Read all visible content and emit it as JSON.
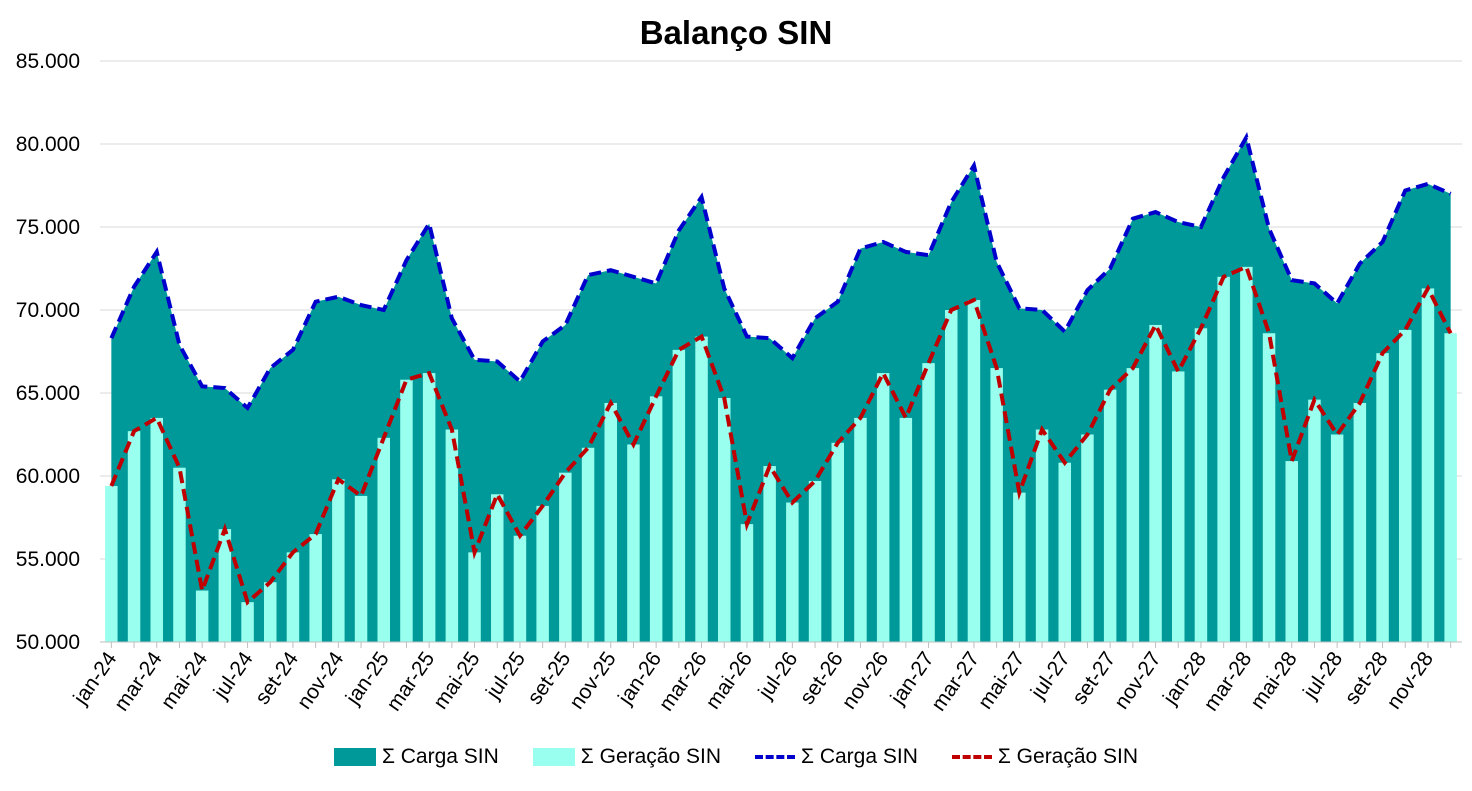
{
  "chart_data": {
    "type": "area",
    "title": "Balanço SIN",
    "ylim": [
      50000,
      85000
    ],
    "yticks": [
      "50.000",
      "55.000",
      "60.000",
      "65.000",
      "70.000",
      "75.000",
      "80.000",
      "85.000"
    ],
    "grid": true,
    "legend_position": "bottom",
    "x_tick_labels": [
      "jan-24",
      "mar-24",
      "mai-24",
      "jul-24",
      "set-24",
      "nov-24",
      "jan-25",
      "mar-25",
      "mai-25",
      "jul-25",
      "set-25",
      "nov-25",
      "jan-26",
      "mar-26",
      "mai-26",
      "jul-26",
      "set-26",
      "nov-26",
      "jan-27",
      "mar-27",
      "mai-27",
      "jul-27",
      "set-27",
      "nov-27",
      "jan-28",
      "mar-28",
      "mai-28",
      "jul-28",
      "set-28",
      "nov-28"
    ],
    "series": [
      {
        "name": "Σ Carga SIN",
        "kind": "area+dashed-line",
        "area_color": "#009999",
        "line_color": "#0000CC",
        "values": [
          68300,
          71400,
          73500,
          67900,
          65400,
          65300,
          64100,
          66500,
          67600,
          70500,
          70800,
          70300,
          70000,
          73000,
          75200,
          69500,
          67000,
          66900,
          65700,
          68100,
          69100,
          72100,
          72400,
          72000,
          71600,
          74800,
          76800,
          71300,
          68400,
          68300,
          67100,
          69500,
          70500,
          73700,
          74100,
          73500,
          73300,
          76500,
          78700,
          72900,
          70100,
          70000,
          68700,
          71200,
          72500,
          75500,
          75900,
          75300,
          75000,
          78000,
          80400,
          74900,
          71800,
          71600,
          70400,
          72800,
          74100,
          77200,
          77600,
          77000
        ]
      },
      {
        "name": "Σ Geração SIN",
        "kind": "column+dashed-line",
        "bar_color": "#99FFEE",
        "line_color": "#C00000",
        "values": [
          59400,
          62700,
          63500,
          60500,
          53100,
          56800,
          52400,
          53600,
          55400,
          56500,
          59800,
          58800,
          62300,
          65800,
          66200,
          62800,
          55400,
          58900,
          56400,
          58200,
          60200,
          61700,
          64400,
          61900,
          64800,
          67600,
          68400,
          64700,
          57100,
          60600,
          58400,
          59700,
          62000,
          63500,
          66200,
          63500,
          66800,
          70000,
          70600,
          66500,
          59000,
          62800,
          60800,
          62500,
          65200,
          66500,
          69100,
          66300,
          68900,
          72000,
          72600,
          68600,
          60900,
          64600,
          62500,
          64400,
          67400,
          68800,
          71300,
          68600
        ]
      }
    ]
  }
}
